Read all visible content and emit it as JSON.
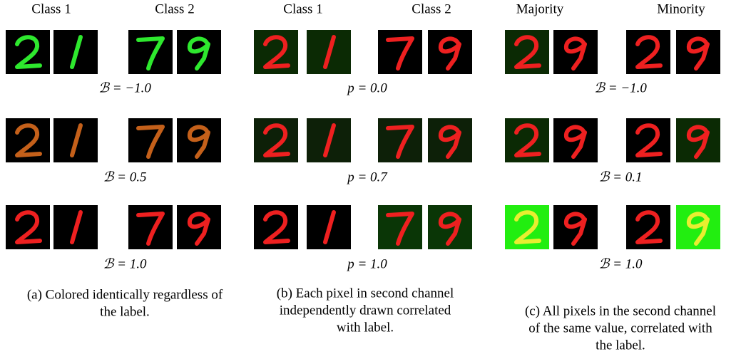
{
  "panels": [
    {
      "headers": [
        "Class 1",
        "Class 2"
      ],
      "row_labels": [
        "ℬ = −1.0",
        "ℬ = 0.5",
        "ℬ = 1.0"
      ],
      "caption": [
        "(a) Colored identically regardless of",
        "the label."
      ]
    },
    {
      "headers": [
        "Class 1",
        "Class 2"
      ],
      "row_labels": [
        "p = 0.0",
        "p = 0.7",
        "p = 1.0"
      ],
      "caption": [
        "(b) Each pixel in second channel",
        "independently drawn correlated",
        "with label."
      ]
    },
    {
      "headers": [
        "Majority",
        "Minority"
      ],
      "row_labels": [
        "ℬ = −1.0",
        "ℬ = 0.1",
        "ℬ = 1.0"
      ],
      "caption": [
        "(c) All pixels in the second channel",
        "of the same value, correlated with",
        "the label."
      ]
    }
  ]
}
